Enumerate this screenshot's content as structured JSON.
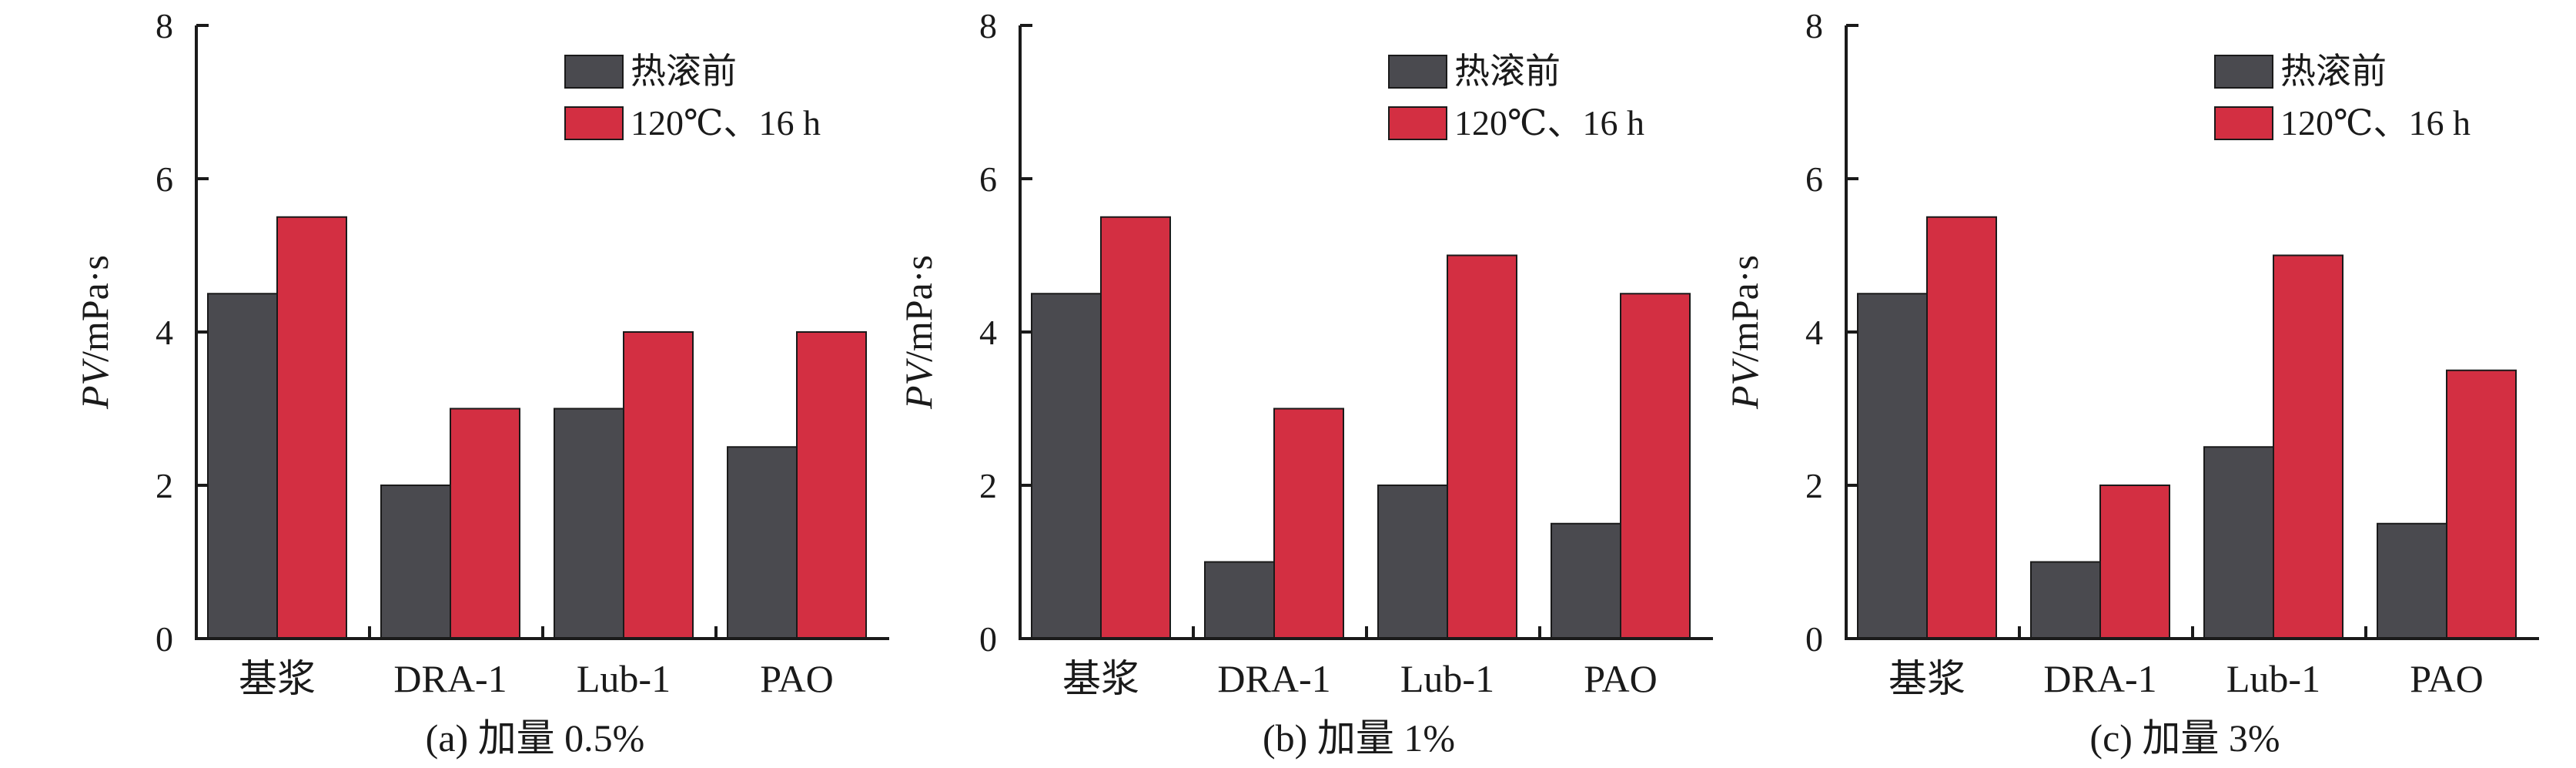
{
  "chart_data": [
    {
      "type": "bar",
      "categories": [
        "基浆",
        "DRA-1",
        "Lub-1",
        "PAO"
      ],
      "series": [
        {
          "name": "热滚前",
          "values": [
            4.5,
            2,
            3,
            2.5
          ],
          "color": "#4a4a4f"
        },
        {
          "name": "120℃、16 h",
          "values": [
            5.5,
            3,
            4,
            4
          ],
          "color": "#d32f42"
        }
      ],
      "ylabel_italic": "PV",
      "ylabel_unit": "/mPa·s",
      "ylim": [
        0,
        8
      ],
      "yticks": [
        "0",
        "2",
        "4",
        "6",
        "8"
      ],
      "caption": "(a) 加量 0.5%",
      "legend": "top-right",
      "grid": false
    },
    {
      "type": "bar",
      "categories": [
        "基浆",
        "DRA-1",
        "Lub-1",
        "PAO"
      ],
      "series": [
        {
          "name": "热滚前",
          "values": [
            4.5,
            1,
            2,
            1.5
          ],
          "color": "#4a4a4f"
        },
        {
          "name": "120℃、16 h",
          "values": [
            5.5,
            3,
            5,
            4.5
          ],
          "color": "#d32f42"
        }
      ],
      "ylabel_italic": "PV",
      "ylabel_unit": "/mPa·s",
      "ylim": [
        0,
        8
      ],
      "yticks": [
        "0",
        "2",
        "4",
        "6",
        "8"
      ],
      "caption": "(b) 加量 1%",
      "legend": "top-right",
      "grid": false
    },
    {
      "type": "bar",
      "categories": [
        "基浆",
        "DRA-1",
        "Lub-1",
        "PAO"
      ],
      "series": [
        {
          "name": "热滚前",
          "values": [
            4.5,
            1,
            2.5,
            1.5
          ],
          "color": "#4a4a4f"
        },
        {
          "name": "120℃、16 h",
          "values": [
            5.5,
            2,
            5,
            3.5
          ],
          "color": "#d32f42"
        }
      ],
      "ylabel_italic": "PV",
      "ylabel_unit": "/mPa·s",
      "ylim": [
        0,
        8
      ],
      "yticks": [
        "0",
        "2",
        "4",
        "6",
        "8"
      ],
      "caption": "(c) 加量 3%",
      "legend": "top-right",
      "grid": false
    }
  ]
}
